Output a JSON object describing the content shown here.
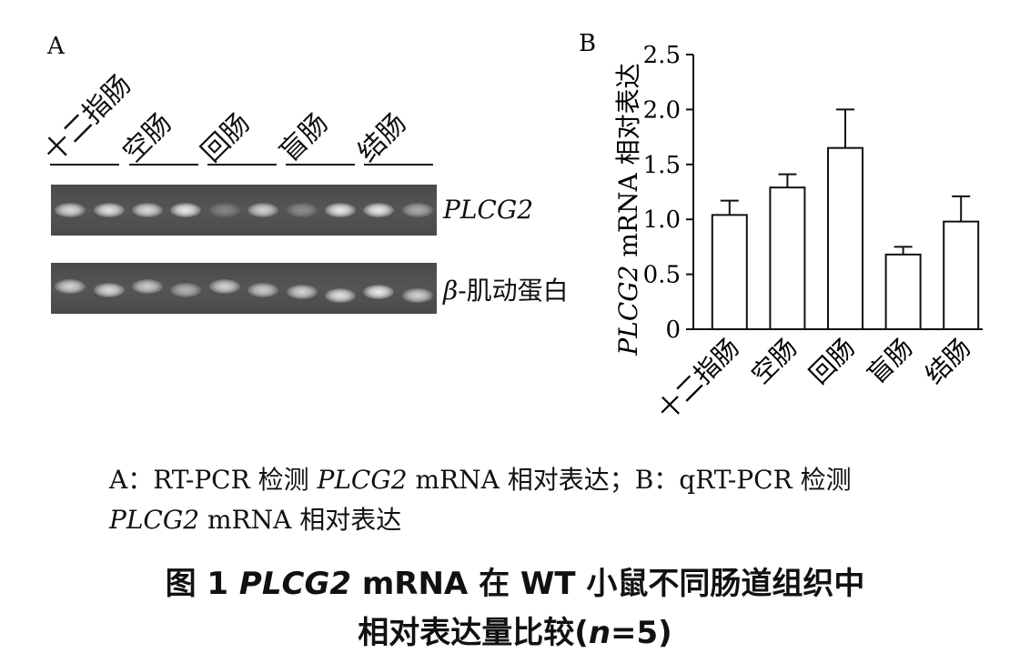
{
  "panel_a": {
    "label": "A",
    "lanes": [
      "十二指肠",
      "空肠",
      "回肠",
      "盲肠",
      "结肠"
    ],
    "gels": [
      {
        "label": "PLCG2",
        "italic": true,
        "band_intensity": [
          0.85,
          0.9,
          0.85,
          0.95,
          0.3,
          0.8,
          0.35,
          0.95,
          0.95,
          0.55
        ]
      },
      {
        "label_beta": "β",
        "label_rest": "-肌动蛋白",
        "italic": false,
        "band_intensity": [
          0.8,
          0.85,
          0.75,
          0.6,
          0.8,
          0.75,
          0.8,
          0.9,
          0.95,
          0.8
        ]
      }
    ]
  },
  "chart_data": {
    "type": "bar",
    "panel_label": "B",
    "categories": [
      "十二指肠",
      "空肠",
      "回肠",
      "盲肠",
      "结肠"
    ],
    "values": [
      1.04,
      1.29,
      1.65,
      0.68,
      0.98
    ],
    "errors": [
      0.13,
      0.12,
      0.35,
      0.07,
      0.23
    ],
    "ylabel_italic": "PLCG2",
    "ylabel_rest": " mRNA 相对表达",
    "ylim": [
      0,
      2.5
    ],
    "yticks": [
      "0",
      "0.5",
      "1.0",
      "1.5",
      "2.0",
      "2.5"
    ],
    "grid": false,
    "bar_fill": "#ffffff",
    "bar_stroke": "#111111"
  },
  "caption": {
    "line1_a": "A：RT-PCR 检测 ",
    "line1_gene": "PLCG2",
    "line1_b": " mRNA 相对表达；B：qRT-PCR 检测",
    "line2_gene": "PLCG2",
    "line2_rest": " mRNA 相对表达"
  },
  "figure_title": {
    "line1_a": "图 1   ",
    "line1_gene": "PLCG2",
    "line1_b": " mRNA 在 WT 小鼠不同肠道组织中",
    "line2_a": "相对表达量比较(",
    "line2_n": "n",
    "line2_b": "=5)"
  }
}
